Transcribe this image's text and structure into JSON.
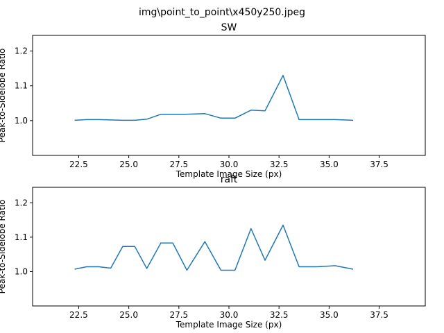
{
  "figure": {
    "suptitle": "img\\point_to_point\\x450y250.jpeg"
  },
  "chart_data": [
    {
      "type": "line",
      "title": "SW",
      "xlabel": "Template Image Size (px)",
      "ylabel": "Peak-to-Sidelobe Ratio",
      "xlim": [
        20.2,
        39.8
      ],
      "ylim": [
        0.9,
        1.245
      ],
      "xticks": [
        22.5,
        25.0,
        27.5,
        30.0,
        32.5,
        35.0,
        37.5
      ],
      "xtick_labels": [
        "22.5",
        "25.0",
        "27.5",
        "30.0",
        "32.5",
        "35.0",
        "37.5"
      ],
      "yticks": [
        1.0,
        1.1,
        1.2
      ],
      "ytick_labels": [
        "1.0",
        "1.1",
        "1.2"
      ],
      "color": "#1f77b4",
      "x": [
        22.3,
        22.9,
        23.5,
        24.1,
        24.7,
        25.3,
        25.9,
        26.6,
        27.2,
        27.8,
        28.8,
        29.6,
        30.3,
        31.1,
        31.8,
        32.7,
        33.5,
        34.4,
        35.3,
        36.2
      ],
      "y": [
        1.001,
        1.003,
        1.003,
        1.002,
        1.001,
        1.001,
        1.004,
        1.018,
        1.018,
        1.018,
        1.02,
        1.007,
        1.007,
        1.03,
        1.028,
        1.13,
        1.003,
        1.003,
        1.003,
        1.001
      ]
    },
    {
      "type": "line",
      "title": "raft",
      "xlabel": "Template Image Size (px)",
      "ylabel": "Peak-to-Sidelobe Ratio",
      "xlim": [
        20.2,
        39.8
      ],
      "ylim": [
        0.9,
        1.245
      ],
      "xticks": [
        22.5,
        25.0,
        27.5,
        30.0,
        32.5,
        35.0,
        37.5
      ],
      "xtick_labels": [
        "22.5",
        "25.0",
        "27.5",
        "30.0",
        "32.5",
        "35.0",
        "37.5"
      ],
      "yticks": [
        1.0,
        1.1,
        1.2
      ],
      "ytick_labels": [
        "1.0",
        "1.1",
        "1.2"
      ],
      "color": "#1f77b4",
      "x": [
        22.3,
        22.9,
        23.5,
        24.1,
        24.7,
        25.3,
        25.9,
        26.6,
        27.2,
        27.9,
        28.8,
        29.6,
        30.3,
        31.1,
        31.8,
        32.7,
        33.5,
        34.4,
        35.3,
        36.2
      ],
      "y": [
        1.007,
        1.014,
        1.014,
        1.01,
        1.073,
        1.073,
        1.009,
        1.083,
        1.083,
        1.004,
        1.087,
        1.004,
        1.004,
        1.125,
        1.033,
        1.135,
        1.014,
        1.014,
        1.017,
        1.007
      ]
    }
  ]
}
